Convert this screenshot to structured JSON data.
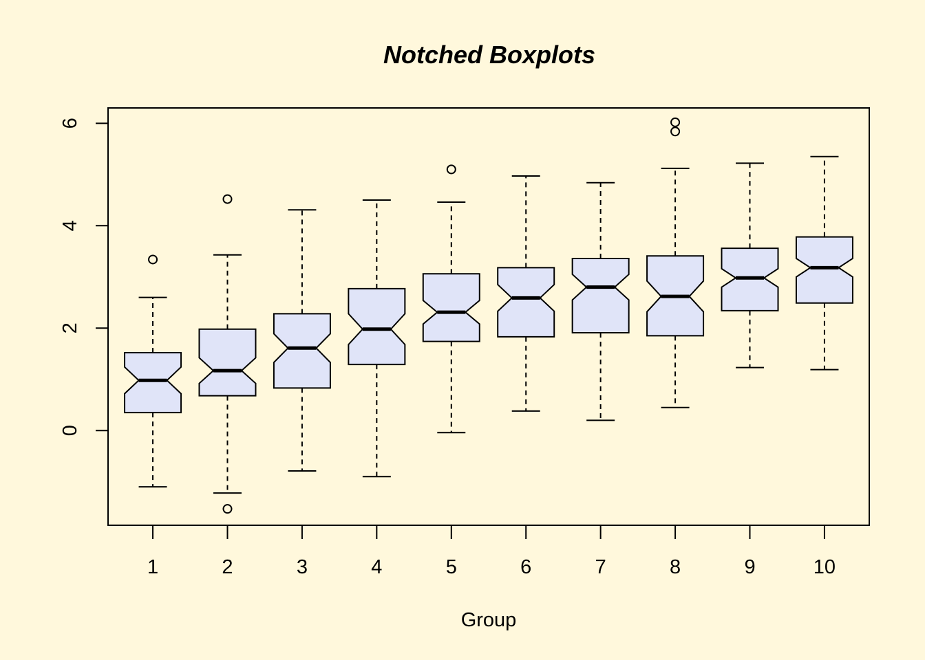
{
  "chart_data": {
    "type": "boxplot",
    "title": "Notched Boxplots",
    "xlabel": "Group",
    "ylabel": "",
    "ylim": [
      -1.85,
      6.3
    ],
    "yticks": [
      0,
      2,
      4,
      6
    ],
    "box_fill": "#e0e4f8",
    "background": "#fff8dc",
    "groups": [
      {
        "label": "1",
        "whisker_low": -1.1,
        "q1": 0.35,
        "notch_low": 0.72,
        "median": 0.98,
        "notch_high": 1.24,
        "q3": 1.52,
        "whisker_high": 2.6,
        "outliers": [
          3.34
        ]
      },
      {
        "label": "2",
        "whisker_low": -1.22,
        "q1": 0.68,
        "notch_low": 0.92,
        "median": 1.17,
        "notch_high": 1.42,
        "q3": 1.98,
        "whisker_high": 3.43,
        "outliers": [
          4.52,
          -1.53
        ]
      },
      {
        "label": "3",
        "whisker_low": -0.79,
        "q1": 0.83,
        "notch_low": 1.33,
        "median": 1.61,
        "notch_high": 1.89,
        "q3": 2.28,
        "whisker_high": 4.31,
        "outliers": []
      },
      {
        "label": "4",
        "whisker_low": -0.9,
        "q1": 1.29,
        "notch_low": 1.68,
        "median": 1.98,
        "notch_high": 2.28,
        "q3": 2.77,
        "whisker_high": 4.5,
        "outliers": []
      },
      {
        "label": "5",
        "whisker_low": -0.04,
        "q1": 1.74,
        "notch_low": 2.08,
        "median": 2.31,
        "notch_high": 2.54,
        "q3": 3.06,
        "whisker_high": 4.46,
        "outliers": [
          5.1
        ]
      },
      {
        "label": "6",
        "whisker_low": 0.38,
        "q1": 1.83,
        "notch_low": 2.33,
        "median": 2.59,
        "notch_high": 2.85,
        "q3": 3.18,
        "whisker_high": 4.97,
        "outliers": []
      },
      {
        "label": "7",
        "whisker_low": 0.2,
        "q1": 1.91,
        "notch_low": 2.55,
        "median": 2.8,
        "notch_high": 3.05,
        "q3": 3.36,
        "whisker_high": 4.84,
        "outliers": []
      },
      {
        "label": "8",
        "whisker_low": 0.45,
        "q1": 1.85,
        "notch_low": 2.32,
        "median": 2.62,
        "notch_high": 2.92,
        "q3": 3.41,
        "whisker_high": 5.12,
        "outliers": [
          5.84,
          6.02
        ]
      },
      {
        "label": "9",
        "whisker_low": 1.23,
        "q1": 2.34,
        "notch_low": 2.8,
        "median": 2.98,
        "notch_high": 3.16,
        "q3": 3.56,
        "whisker_high": 5.22,
        "outliers": []
      },
      {
        "label": "10",
        "whisker_low": 1.19,
        "q1": 2.49,
        "notch_low": 3.0,
        "median": 3.18,
        "notch_high": 3.36,
        "q3": 3.78,
        "whisker_high": 5.35,
        "outliers": []
      }
    ]
  }
}
